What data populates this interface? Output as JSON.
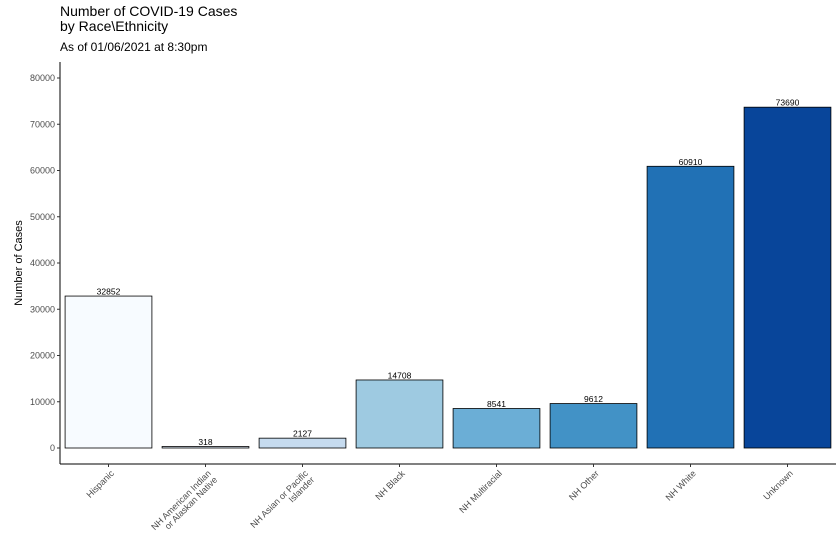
{
  "chart_data": {
    "type": "bar",
    "title": "Number of COVID-19 Cases\nby Race\\Ethnicity",
    "subtitle": "As of 01/06/2021 at 8:30pm",
    "xlabel": "",
    "ylabel": "Number of Cases",
    "ylim": [
      0,
      80000
    ],
    "yticks": [
      0,
      10000,
      20000,
      30000,
      40000,
      50000,
      60000,
      70000,
      80000
    ],
    "categories": [
      "Hispanic",
      "NH American Indian\nor Alaskan Native",
      "NH Asian or Pacific\nIslander",
      "NH Black",
      "NH Multiracial",
      "NH Other",
      "NH White",
      "Unknown"
    ],
    "values": [
      32852,
      318,
      2127,
      14708,
      8541,
      9612,
      60910,
      73690
    ],
    "colors": [
      "#f7fbff",
      "#deebf7",
      "#c6dbef",
      "#9ecae1",
      "#6baed6",
      "#4292c6",
      "#2171b5",
      "#08459a"
    ],
    "grid": false,
    "legend": "none"
  }
}
